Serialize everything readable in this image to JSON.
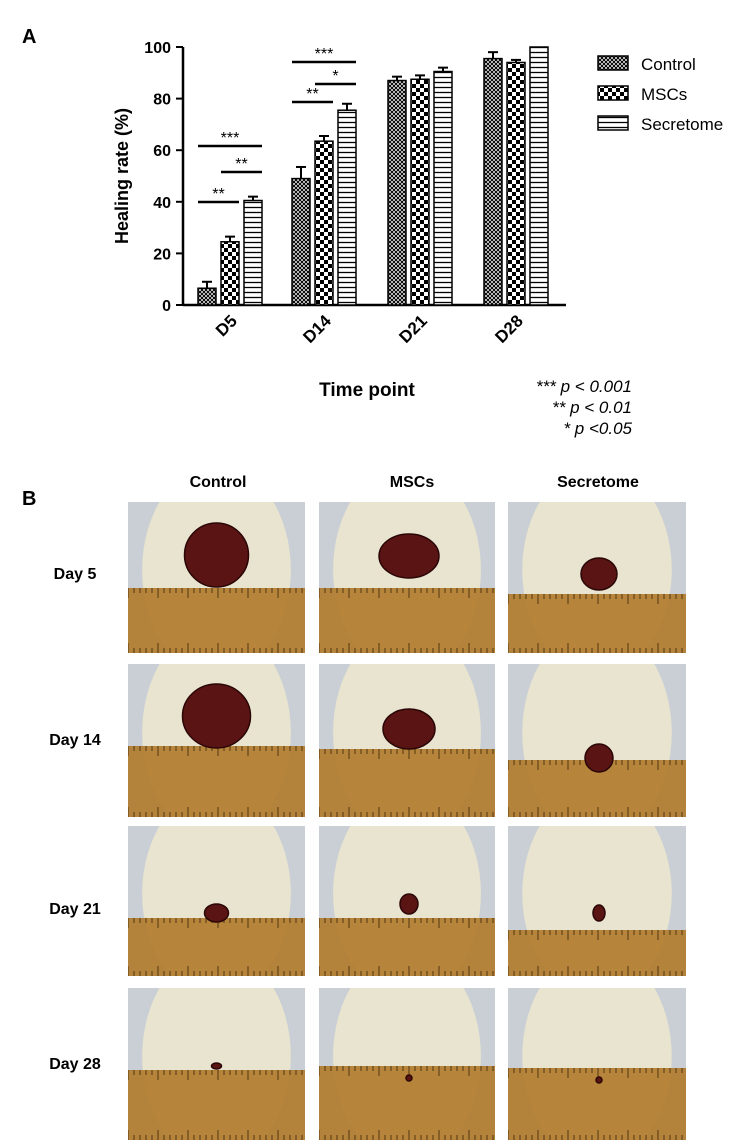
{
  "panel_a_label": "A",
  "panel_b_label": "B",
  "chart_data": {
    "type": "bar",
    "title": "",
    "xlabel": "Time point",
    "ylabel": "Healing rate (%)",
    "ylim": [
      0,
      100
    ],
    "yticks": [
      0,
      20,
      40,
      60,
      80,
      100
    ],
    "categories": [
      "D5",
      "D14",
      "D21",
      "D28"
    ],
    "series": [
      {
        "name": "Control",
        "pattern": "crosshatch-dense",
        "values": [
          6.5,
          49,
          87,
          95.5
        ],
        "errors": [
          2.5,
          4.5,
          1.5,
          2.5
        ]
      },
      {
        "name": "MSCs",
        "pattern": "checkerboard",
        "values": [
          24.5,
          63.5,
          87.5,
          94
        ],
        "errors": [
          2,
          2,
          1.5,
          1
        ]
      },
      {
        "name": "Secretome",
        "pattern": "horizontal-lines",
        "values": [
          40.5,
          75.5,
          90.5,
          100
        ],
        "errors": [
          1.5,
          2.5,
          1.5,
          0
        ]
      }
    ],
    "legend_position": "top-right",
    "significance": [
      {
        "category": "D5",
        "from": "Control",
        "to": "MSCs",
        "label": "**"
      },
      {
        "category": "D5",
        "from": "MSCs",
        "to": "Secretome",
        "label": "**"
      },
      {
        "category": "D5",
        "from": "Control",
        "to": "Secretome",
        "label": "***"
      },
      {
        "category": "D14",
        "from": "Control",
        "to": "MSCs",
        "label": "**"
      },
      {
        "category": "D14",
        "from": "MSCs",
        "to": "Secretome",
        "label": "*"
      },
      {
        "category": "D14",
        "from": "Control",
        "to": "Secretome",
        "label": "***"
      }
    ],
    "significance_key": [
      "*** p < 0.001",
      "** p < 0.01",
      "* p <0.05"
    ]
  },
  "photo_grid": {
    "columns": [
      "Control",
      "MSCs",
      "Secretome"
    ],
    "rows": [
      "Day 5",
      "Day 14",
      "Day 21",
      "Day 28"
    ]
  },
  "colors": {
    "bar_stroke": "#000000",
    "wound": "#5a1414",
    "fur": "#e9e4cf",
    "ruler": "#b07a2a"
  }
}
